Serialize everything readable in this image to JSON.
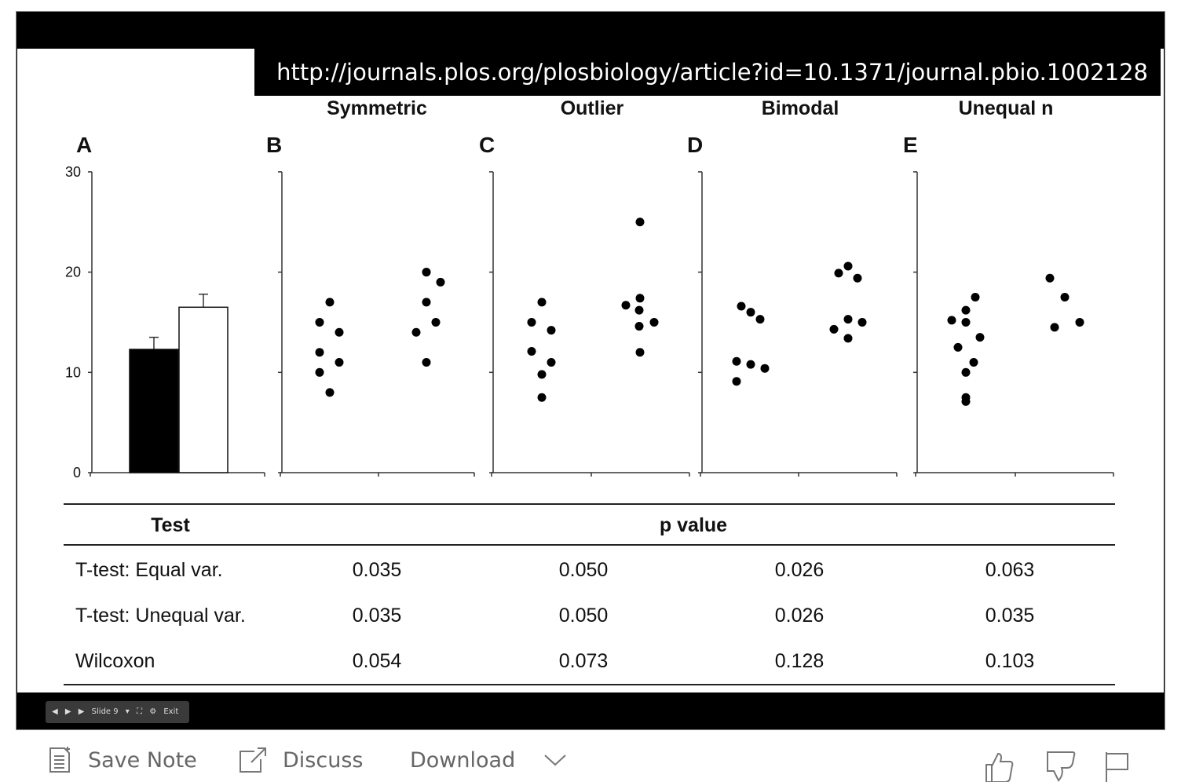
{
  "slide": {
    "url": "http://journals.plos.org/plosbiology/article?id=10.1371/journal.pbio.1002128"
  },
  "chart_data": [
    {
      "panel": "A",
      "type": "bar",
      "categories": [
        "",
        ""
      ],
      "values": [
        12.3,
        16.5
      ],
      "errors": [
        1.2,
        1.3
      ],
      "colors": [
        "#000000",
        "#ffffff"
      ],
      "yticks": [
        0,
        10,
        20,
        30
      ],
      "ylim": [
        0,
        30
      ]
    },
    {
      "panel": "B",
      "title": "Symmetric",
      "type": "scatter",
      "groups": [
        [
          17,
          15,
          14,
          12,
          11,
          10,
          8
        ],
        [
          20,
          20,
          19,
          17,
          15,
          14,
          11
        ]
      ],
      "ylim": [
        0,
        30
      ]
    },
    {
      "panel": "C",
      "title": "Outlier",
      "type": "scatter",
      "groups": [
        [
          17,
          15,
          14.2,
          12.1,
          11,
          9.8,
          7.5
        ],
        [
          25,
          17.4,
          16.7,
          16.2,
          15,
          14.6,
          12
        ]
      ],
      "ylim": [
        0,
        30
      ]
    },
    {
      "panel": "D",
      "title": "Bimodal",
      "type": "scatter",
      "groups": [
        [
          16.6,
          16,
          15.3,
          11.1,
          10.8,
          10.4,
          9.1
        ],
        [
          20.6,
          19.9,
          19.4,
          15.3,
          15,
          14.3,
          13.4
        ]
      ],
      "ylim": [
        0,
        30
      ]
    },
    {
      "panel": "E",
      "title": "Unequal n",
      "type": "scatter",
      "groups": [
        [
          17.5,
          16.2,
          15.2,
          15,
          13.5,
          12.5,
          11,
          10,
          7.5,
          7.1
        ],
        [
          19.4,
          17.5,
          15,
          14.5
        ]
      ],
      "ylim": [
        0,
        30
      ]
    }
  ],
  "table": {
    "header_test": "Test",
    "header_pvalue": "p value",
    "rows": [
      {
        "test": "T-test: Equal var.",
        "values": [
          "0.035",
          "0.050",
          "0.026",
          "0.063"
        ]
      },
      {
        "test": "T-test: Unequal var.",
        "values": [
          "0.035",
          "0.050",
          "0.026",
          "0.035"
        ]
      },
      {
        "test": "Wilcoxon",
        "values": [
          "0.054",
          "0.073",
          "0.128",
          "0.103"
        ]
      }
    ]
  },
  "player_controls": {
    "slide_label": "Slide 9",
    "exit_label": "Exit"
  },
  "actions": {
    "save_note": "Save Note",
    "discuss": "Discuss",
    "download": "Download"
  }
}
